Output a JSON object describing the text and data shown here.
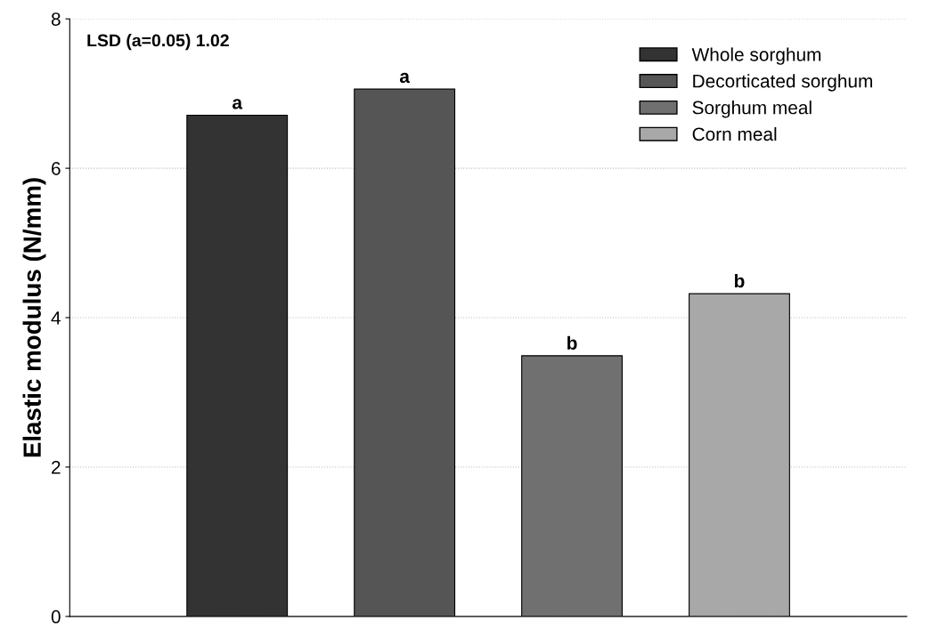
{
  "chart_data": {
    "type": "bar",
    "ylabel": "Elastic modulus (N/mm)",
    "categories": [
      null,
      null,
      null,
      null
    ],
    "series": [
      {
        "name": "Whole sorghum",
        "color": "#333333",
        "values": [
          6.71,
          null,
          null,
          null
        ],
        "value_labels": [
          "a",
          null,
          null,
          null
        ]
      },
      {
        "name": "Decorticated sorghum",
        "color": "#555555",
        "values": [
          null,
          7.06,
          null,
          null
        ],
        "value_labels": [
          null,
          "a",
          null,
          null
        ]
      },
      {
        "name": "Sorghum meal",
        "color": "#707070",
        "values": [
          null,
          null,
          3.49,
          null
        ],
        "value_labels": [
          null,
          null,
          "b",
          null
        ]
      },
      {
        "name": "Corn meal",
        "color": "#a8a8a8",
        "values": [
          null,
          null,
          null,
          4.32
        ],
        "value_labels": [
          null,
          null,
          null,
          "b"
        ]
      }
    ],
    "annotations": [
      "LSD (a=0.05) 1.02"
    ],
    "ylim": [
      0,
      8
    ],
    "yticks": [
      0,
      2,
      4,
      6,
      8
    ],
    "grid": "y",
    "legend": "top right"
  }
}
